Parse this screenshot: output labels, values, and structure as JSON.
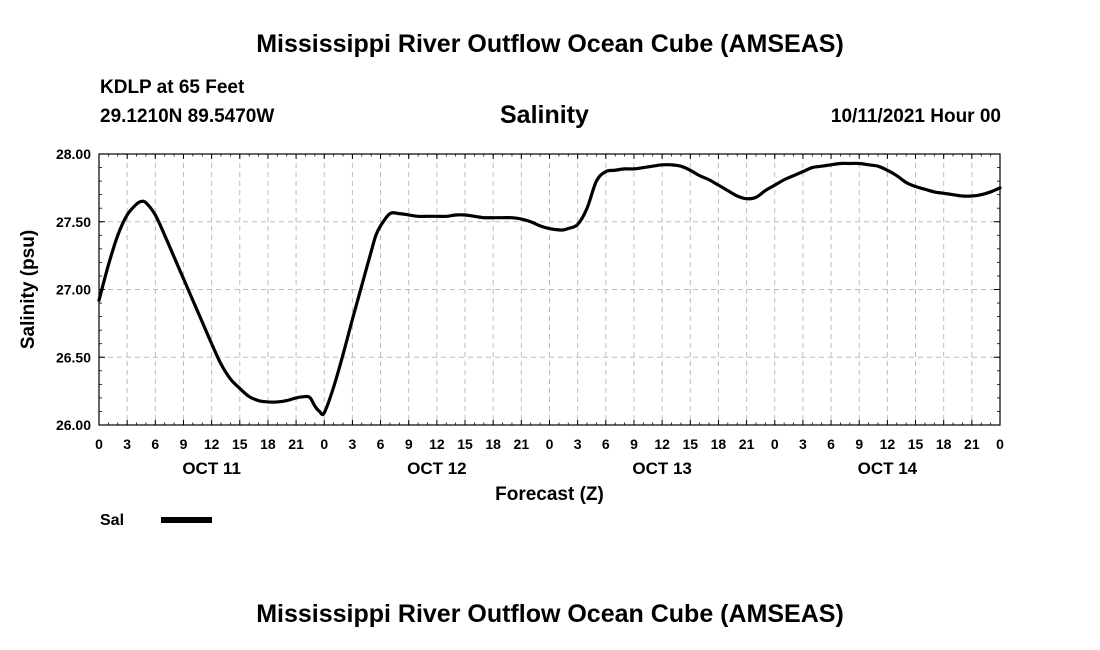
{
  "header": {
    "title": "Mississippi River Outflow Ocean Cube (AMSEAS)",
    "station": "KDLP at 65 Feet",
    "coords": "29.1210N  89.5470W",
    "variable": "Salinity",
    "run": "10/11/2021 Hour 00"
  },
  "footer": {
    "title": "Mississippi River Outflow Ocean Cube (AMSEAS)"
  },
  "chart_data": {
    "type": "line",
    "ylabel": "Salinity (psu)",
    "xlabel": "Forecast (Z)",
    "ylim": [
      26.0,
      28.0
    ],
    "yticks": [
      "26.00",
      "26.50",
      "27.00",
      "27.50",
      "28.00"
    ],
    "xlim_hours": [
      0,
      96
    ],
    "xtick_labels": [
      "0",
      "3",
      "6",
      "9",
      "12",
      "15",
      "18",
      "21",
      "0",
      "3",
      "6",
      "9",
      "12",
      "15",
      "18",
      "21",
      "0",
      "3",
      "6",
      "9",
      "12",
      "15",
      "18",
      "21",
      "0",
      "3",
      "6",
      "9",
      "12",
      "15",
      "18",
      "21",
      "0"
    ],
    "days": [
      {
        "label": "OCT 11",
        "center_hour": 12
      },
      {
        "label": "OCT 12",
        "center_hour": 36
      },
      {
        "label": "OCT 13",
        "center_hour": 60
      },
      {
        "label": "OCT 14",
        "center_hour": 84
      }
    ],
    "grid": true,
    "legend": {
      "placement": "bottom-left",
      "entries": [
        {
          "label": "Sal"
        }
      ]
    },
    "series": [
      {
        "name": "Sal",
        "color": "#000000",
        "x_hours": [
          0,
          1,
          2,
          3,
          4,
          4.5,
          5,
          6,
          7,
          8,
          9,
          10,
          11,
          12,
          13,
          14,
          15,
          16,
          17,
          18,
          19,
          20,
          21,
          22,
          22.5,
          23,
          23.5,
          24,
          25,
          26,
          27,
          28,
          29,
          29.5,
          30,
          31,
          32,
          33,
          34,
          35,
          36,
          37,
          38,
          39,
          40,
          41,
          42,
          43,
          44,
          45,
          46,
          47,
          48,
          49,
          49.5,
          50,
          51,
          52,
          53,
          54,
          55,
          56,
          57,
          58,
          59,
          60,
          61,
          62,
          63,
          64,
          65,
          66,
          67,
          68,
          69,
          70,
          71,
          72,
          73,
          74,
          75,
          76,
          77,
          78,
          79,
          80,
          81,
          82,
          83,
          84,
          85,
          86,
          87,
          88,
          89,
          90,
          91,
          92,
          93,
          94,
          95,
          96
        ],
        "y": [
          26.92,
          27.18,
          27.4,
          27.55,
          27.63,
          27.65,
          27.64,
          27.55,
          27.4,
          27.24,
          27.08,
          26.92,
          26.76,
          26.6,
          26.45,
          26.34,
          26.27,
          26.21,
          26.18,
          26.17,
          26.17,
          26.18,
          26.2,
          26.21,
          26.2,
          26.14,
          26.1,
          26.09,
          26.28,
          26.52,
          26.78,
          27.03,
          27.28,
          27.4,
          27.47,
          27.56,
          27.56,
          27.55,
          27.54,
          27.54,
          27.54,
          27.54,
          27.55,
          27.55,
          27.54,
          27.53,
          27.53,
          27.53,
          27.53,
          27.52,
          27.5,
          27.47,
          27.45,
          27.44,
          27.44,
          27.45,
          27.48,
          27.6,
          27.8,
          27.87,
          27.88,
          27.89,
          27.89,
          27.9,
          27.91,
          27.92,
          27.92,
          27.91,
          27.88,
          27.84,
          27.81,
          27.77,
          27.73,
          27.69,
          27.67,
          27.68,
          27.73,
          27.77,
          27.81,
          27.84,
          27.87,
          27.9,
          27.91,
          27.92,
          27.93,
          27.93,
          27.93,
          27.92,
          27.91,
          27.88,
          27.84,
          27.79,
          27.76,
          27.74,
          27.72,
          27.71,
          27.7,
          27.69,
          27.69,
          27.7,
          27.72,
          27.75
        ]
      }
    ]
  }
}
